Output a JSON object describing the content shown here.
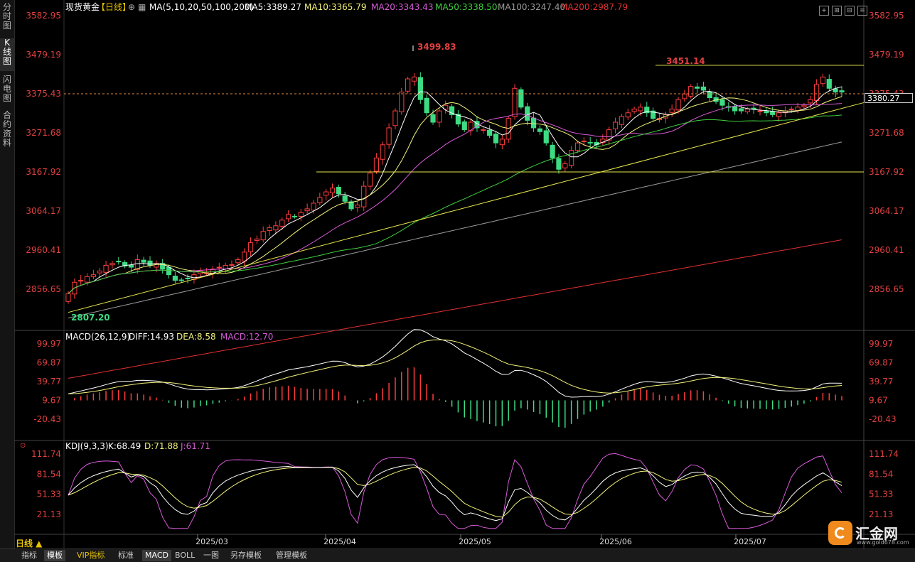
{
  "left_tabs": [
    {
      "label": "分\n时\n图",
      "active": false
    },
    {
      "label": "K\n线\n图",
      "active": true
    },
    {
      "label": "闪\n电\n图",
      "active": false
    },
    {
      "label": "合\n约\n资\n料",
      "active": false
    }
  ],
  "header": {
    "title": "现货黄金",
    "period": "【日线】",
    "ma_label": "MA(5,10,20,50,100,200)",
    "ma5": "MA5:3389.27",
    "ma10": "MA10:3365.79",
    "ma20": "MA20:3343.43",
    "ma50": "MA50:3338.50",
    "ma100": "MA100:3247.40",
    "ma200": "MA200:2987.79"
  },
  "colors": {
    "up": "#ff3d3d",
    "down": "#3ddc84",
    "ma5": "#ffffff",
    "ma10": "#f2f27a",
    "ma20": "#d85ad8",
    "ma50": "#3fcf3f",
    "ma100": "#9a9a9a",
    "ma200": "#e03030",
    "axis_text": "#e04040",
    "trendline": "#e6e64a"
  },
  "price_axis": {
    "ticks": [
      "3582.95",
      "3479.19",
      "3375.43",
      "3271.68",
      "3167.92",
      "3064.17",
      "2960.41",
      "2856.65"
    ],
    "tick_values": [
      3582.95,
      3479.19,
      3375.43,
      3271.68,
      3167.92,
      3064.17,
      2960.41,
      2856.65
    ],
    "current_price": "3380.27"
  },
  "annotations": {
    "high": "3499.83",
    "second_high": "3451.14",
    "low": "2807.20"
  },
  "macd": {
    "label": "MACD(26,12,9)",
    "diff": "DIFF:14.93",
    "dea": "DEA:8.58",
    "macd": "MACD:12.70",
    "ticks": [
      "99.97",
      "69.87",
      "39.77",
      "9.67",
      "-20.43"
    ],
    "tick_values": [
      99.97,
      69.87,
      39.77,
      9.67,
      -20.43
    ]
  },
  "kdj": {
    "label": "KDJ(9,3,3)",
    "k": "K:68.49",
    "d": "D:71.88",
    "j": "J:61.71",
    "ticks": [
      "111.74",
      "81.54",
      "51.33",
      "21.13"
    ],
    "tick_values": [
      111.74,
      81.54,
      51.33,
      21.13
    ]
  },
  "date_axis": {
    "labels": [
      "2025/03",
      "2025/04",
      "2025/05",
      "2025/06",
      "2025/07"
    ]
  },
  "chart_data": {
    "type": "candlestick",
    "series_name": "现货黄金",
    "period": "日线",
    "ylim": [
      2807,
      3590
    ],
    "x_month_labels": [
      "2025/03",
      "2025/04",
      "2025/05",
      "2025/06",
      "2025/07"
    ],
    "key_levels": {
      "high": 3499.83,
      "second_high": 3451.14,
      "low": 2807.2,
      "last": 3380.27,
      "horizontal_support": 3167.92
    },
    "moving_averages": {
      "MA5": 3389.27,
      "MA10": 3365.79,
      "MA20": 3343.43,
      "MA50": 3338.5,
      "MA100": 3247.4,
      "MA200": 2987.79
    },
    "macd_last": {
      "DIFF": 14.93,
      "DEA": 8.58,
      "MACD": 12.7
    },
    "kdj_last": {
      "K": 68.49,
      "D": 71.88,
      "J": 61.71
    },
    "close_path": [
      2845,
      2875,
      2880,
      2890,
      2895,
      2905,
      2920,
      2925,
      2930,
      2918,
      2915,
      2935,
      2928,
      2920,
      2925,
      2910,
      2895,
      2880,
      2880,
      2885,
      2895,
      2905,
      2900,
      2910,
      2915,
      2920,
      2922,
      2935,
      2955,
      2980,
      2990,
      3010,
      3020,
      3025,
      3040,
      3055,
      3050,
      3060,
      3070,
      3085,
      3100,
      3115,
      3125,
      3110,
      3090,
      3070,
      3080,
      3130,
      3165,
      3205,
      3240,
      3285,
      3330,
      3380,
      3415,
      3420,
      3360,
      3325,
      3300,
      3330,
      3345,
      3320,
      3295,
      3280,
      3300,
      3285,
      3280,
      3265,
      3245,
      3255,
      3310,
      3390,
      3340,
      3305,
      3285,
      3275,
      3245,
      3205,
      3175,
      3190,
      3225,
      3245,
      3250,
      3245,
      3240,
      3255,
      3280,
      3300,
      3315,
      3325,
      3335,
      3340,
      3325,
      3310,
      3310,
      3320,
      3335,
      3360,
      3375,
      3395,
      3390,
      3385,
      3365,
      3355,
      3345,
      3340,
      3330,
      3330,
      3335,
      3335,
      3330,
      3325,
      3320,
      3325,
      3330,
      3335,
      3340,
      3345,
      3360,
      3400,
      3420,
      3390,
      3380,
      3380
    ]
  }
}
